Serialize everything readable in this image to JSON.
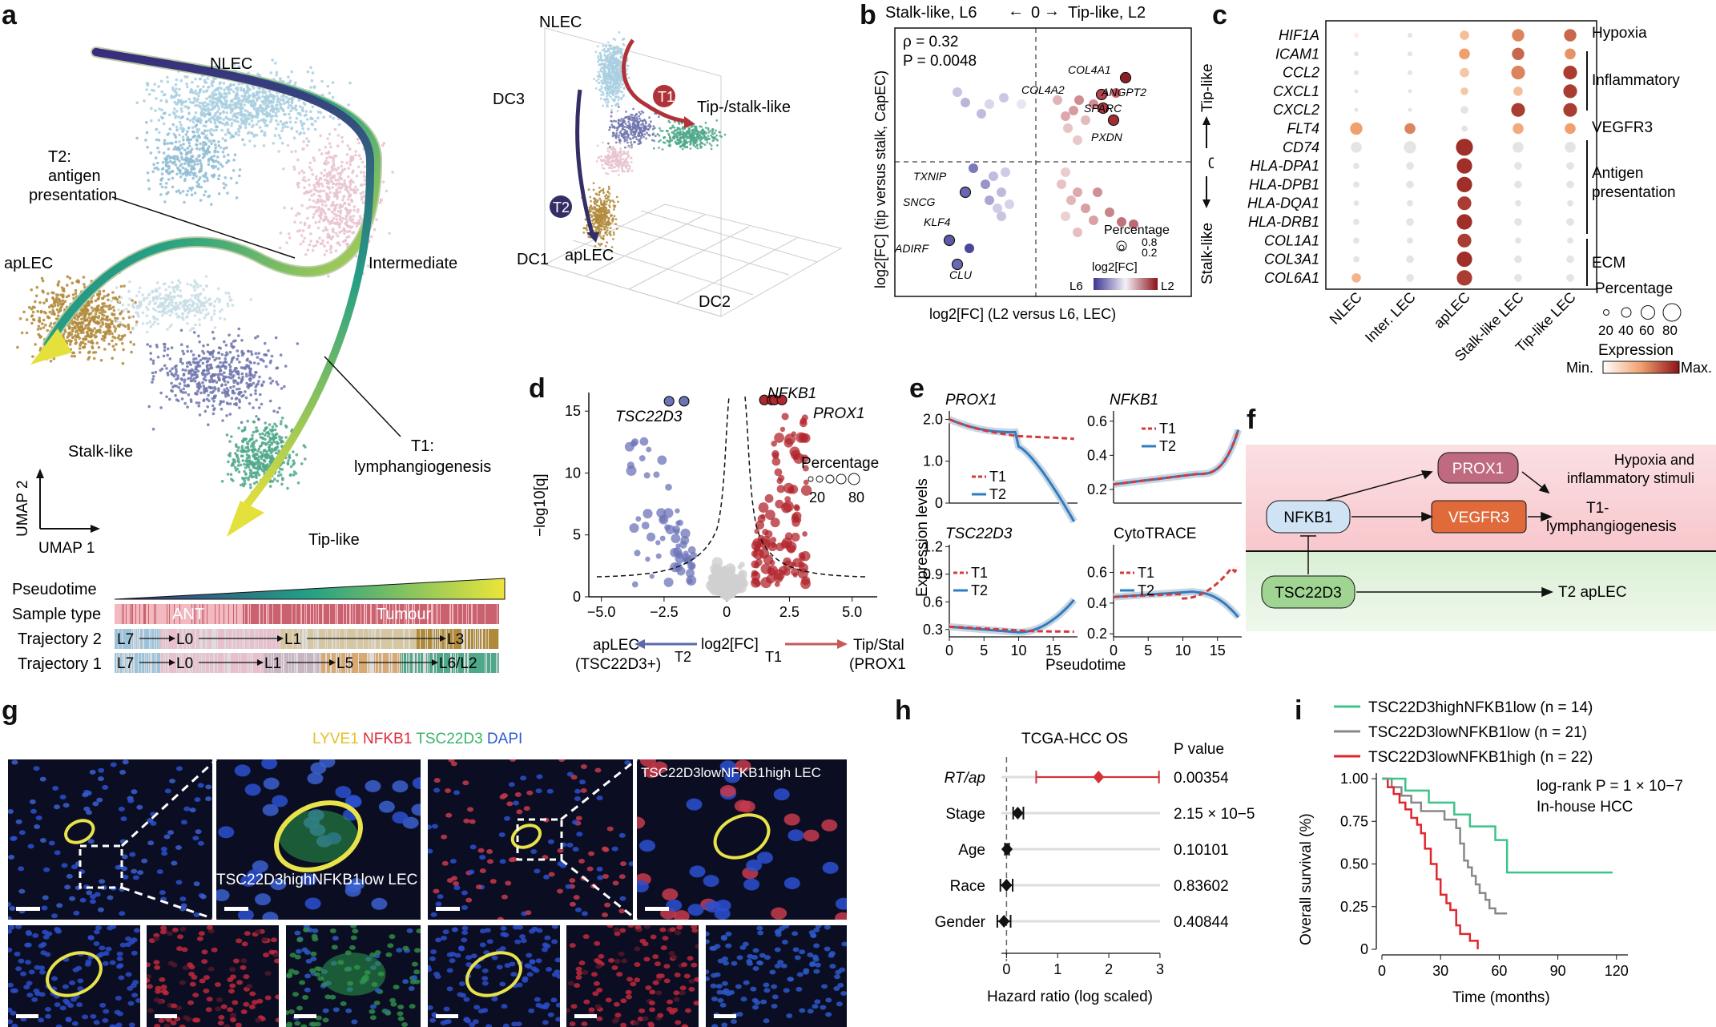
{
  "panels": {
    "a": "a",
    "b": "b",
    "c": "c",
    "d": "d",
    "e": "e",
    "f": "f",
    "g": "g",
    "h": "h",
    "i": "i"
  },
  "panel_a": {
    "umap_labels": {
      "nlec": "NLEC",
      "t2a": "T2:",
      "t2b": "antigen",
      "t2c": "presentation",
      "aplec": "apLEC",
      "intermediate": "Intermediate",
      "stalk": "Stalk-like",
      "t1a": "T1:",
      "t1b": "lymphangiogenesis",
      "tip": "Tip-like",
      "umap2": "UMAP 2",
      "umap1": "UMAP 1"
    },
    "dc_labels": {
      "nlec": "NLEC",
      "dc3": "DC3",
      "dc1": "DC1",
      "dc2": "DC2",
      "aplec": "apLEC",
      "tipstalk": "Tip-/stalk-like",
      "t1": "T1",
      "t2": "T2"
    },
    "tracks": {
      "pseudotime": "Pseudotime",
      "sample_type": "Sample type",
      "ant": "ANT",
      "tumour": "Tumour",
      "traj2": "Trajectory 2",
      "traj1": "Trajectory 1",
      "t2_nodes": [
        "L7",
        "L0",
        "L1",
        "L3"
      ],
      "t1_nodes": [
        "L7",
        "L0",
        "L1",
        "L5",
        "L6/L2"
      ]
    }
  },
  "panel_b": {
    "top": "Stalk-like, L6",
    "zero": "0",
    "tip_label": "Tip-like, L2",
    "rho": "ρ = 0.32",
    "p": "P = 0.0048",
    "ylabel": "log2[FC] (tip versus stalk, CapEC)",
    "xlabel": "log2[FC] (L2 versus L6, LEC)",
    "right_top": "Tip-like",
    "right_zero": "0",
    "right_bottom": "Stalk-like",
    "genes": [
      "COL4A1",
      "ANGPT2",
      "COL4A2",
      "SPARC",
      "PXDN",
      "TXNIP",
      "SNCG",
      "KLF4",
      "ADIRF",
      "CLU"
    ],
    "percentage": "Percentage",
    "pct_vals": [
      "0.8",
      "0.2"
    ],
    "fc_legend": "log2[FC]",
    "l6": "L6",
    "l2": "L2"
  },
  "panel_c": {
    "genes": [
      "HIF1A",
      "ICAM1",
      "CCL2",
      "CXCL1",
      "CXCL2",
      "FLT4",
      "CD74",
      "HLA-DPA1",
      "HLA-DPB1",
      "HLA-DQA1",
      "HLA-DRB1",
      "COL1A1",
      "COL3A1",
      "COL6A1"
    ],
    "groups": [
      "NLEC",
      "Inter. LEC",
      "apLEC",
      "Stalk-like LEC",
      "Tip-like LEC"
    ],
    "categories": [
      "Hypoxia",
      "Inflammatory",
      "VEGFR3",
      "Antigen",
      "presentation",
      "ECM"
    ],
    "legend_pct": "Percentage",
    "pct_vals": [
      "20",
      "40",
      "60",
      "80"
    ],
    "legend_expr": "Expression",
    "min": "Min.",
    "max": "Max.",
    "sizes": [
      [
        0.1,
        0.1,
        0.4,
        0.6,
        0.6
      ],
      [
        0.1,
        0.1,
        0.5,
        0.6,
        0.5
      ],
      [
        0.1,
        0.1,
        0.4,
        0.7,
        0.7
      ],
      [
        0.05,
        0.05,
        0.3,
        0.4,
        0.7
      ],
      [
        0.05,
        0.05,
        0.3,
        0.7,
        0.7
      ],
      [
        0.6,
        0.5,
        0.2,
        0.5,
        0.5
      ],
      [
        0.5,
        0.6,
        0.9,
        0.5,
        0.5
      ],
      [
        0.2,
        0.3,
        0.8,
        0.3,
        0.3
      ],
      [
        0.2,
        0.3,
        0.8,
        0.3,
        0.3
      ],
      [
        0.15,
        0.2,
        0.7,
        0.2,
        0.2
      ],
      [
        0.2,
        0.3,
        0.8,
        0.3,
        0.3
      ],
      [
        0.2,
        0.2,
        0.7,
        0.2,
        0.2
      ],
      [
        0.2,
        0.3,
        0.8,
        0.3,
        0.3
      ],
      [
        0.4,
        0.3,
        0.8,
        0.3,
        0.3
      ]
    ],
    "expr": [
      [
        0.1,
        0.05,
        0.35,
        0.6,
        0.7
      ],
      [
        0.05,
        0.05,
        0.5,
        0.7,
        0.55
      ],
      [
        0.05,
        0.05,
        0.3,
        0.6,
        0.85
      ],
      [
        0.05,
        0.05,
        0.3,
        0.35,
        0.85
      ],
      [
        0.05,
        0.05,
        0.05,
        0.85,
        0.85
      ],
      [
        0.5,
        0.6,
        0.05,
        0.45,
        0.5
      ],
      [
        0.05,
        0.05,
        0.9,
        0.05,
        0.05
      ],
      [
        0.05,
        0.05,
        0.9,
        0.05,
        0.05
      ],
      [
        0.05,
        0.05,
        0.9,
        0.05,
        0.05
      ],
      [
        0.05,
        0.05,
        0.85,
        0.05,
        0.05
      ],
      [
        0.05,
        0.05,
        0.9,
        0.05,
        0.05
      ],
      [
        0.05,
        0.05,
        0.85,
        0.05,
        0.05
      ],
      [
        0.05,
        0.05,
        0.9,
        0.05,
        0.05
      ],
      [
        0.4,
        0.05,
        0.85,
        0.05,
        0.05
      ]
    ]
  },
  "panel_d": {
    "genes": [
      "TSC22D3",
      "NFKB1",
      "PROX1"
    ],
    "ylabel": "−log10[q]",
    "xlabel": "log2[FC]",
    "xticks": [
      "−5.0",
      "−2.5",
      "0",
      "2.5",
      "5.0"
    ],
    "yticks": [
      "0",
      "5",
      "10",
      "15"
    ],
    "left1": "apLEC",
    "left2": "(TSC22D3+)",
    "right1": "Tip/Stalk",
    "right2": "(PROX1+)",
    "t2": "T2",
    "t1": "T1",
    "percentage": "Percentage",
    "pct_vals": [
      "20",
      "80"
    ]
  },
  "panel_e": {
    "titles": [
      "PROX1",
      "NFKB1",
      "TSC22D3",
      "CytoTRACE"
    ],
    "ylabel": "Expression levels",
    "xlabel": "Pseudotime",
    "legend": [
      "T1",
      "T2"
    ],
    "xticks": [
      "0",
      "5",
      "10",
      "15"
    ],
    "yticks": [
      [
        "0",
        "1.0",
        "2.0"
      ],
      [
        "0.2",
        "0.4",
        "0.6"
      ],
      [
        "0.3",
        "0.6",
        "0.9",
        "1.2"
      ],
      [
        "0.2",
        "0.4",
        "0.6"
      ]
    ]
  },
  "panel_f": {
    "prox1": "PROX1",
    "nfkb1": "NFKB1",
    "vegfr3": "VEGFR3",
    "tsc": "TSC22D3",
    "hyp1": "Hypoxia and",
    "hyp2": "inflammatory stimuli",
    "t1a": "T1-",
    "t1b": "lymphangiogenesis",
    "t2": "T2 apLEC"
  },
  "panel_g": {
    "stains": [
      "LYVE1",
      "NFKB1",
      "TSC22D3",
      "DAPI"
    ],
    "label_high": "TSC22D3highNFKB1low LEC",
    "label_low": "TSC22D3lowNFKB1high LEC"
  },
  "panel_h": {
    "title": "TCGA-HCC OS",
    "pcol": "P value",
    "rows": [
      {
        "label": "RT/ap",
        "hr": 1.8,
        "lo": 0.58,
        "hi": 2.98,
        "p": "0.00354"
      },
      {
        "label": "Stage",
        "hr": 0.22,
        "lo": 0.13,
        "hi": 0.33,
        "p": "2.15 × 10−5"
      },
      {
        "label": "Age",
        "hr": 0.01,
        "lo": -0.03,
        "hi": 0.05,
        "p": "0.10101"
      },
      {
        "label": "Race",
        "hr": 0.0,
        "lo": -0.12,
        "hi": 0.12,
        "p": "0.83602"
      },
      {
        "label": "Gender",
        "hr": -0.05,
        "lo": -0.18,
        "hi": 0.08,
        "p": "0.40844"
      }
    ],
    "xticks": [
      "0",
      "1",
      "2",
      "3"
    ],
    "xlabel": "Hazard ratio (log scaled)"
  },
  "panel_i": {
    "legend": [
      "TSC22D3highNFKB1low (n = 14)",
      "TSC22D3lowNFKB1low (n = 21)",
      "TSC22D3lowNFKB1high (n = 22)"
    ],
    "colors": [
      "#3cc48a",
      "#888888",
      "#e0262c"
    ],
    "logrank": "log-rank P = 1 × 10−7",
    "cohort": "In-house HCC",
    "ylabel": "Overall survival (%)",
    "xlabel": "Time (months)",
    "xticks": [
      "0",
      "30",
      "60",
      "90",
      "120"
    ],
    "yticks": [
      "0",
      "0.25",
      "0.50",
      "0.75",
      "1.00"
    ]
  }
}
